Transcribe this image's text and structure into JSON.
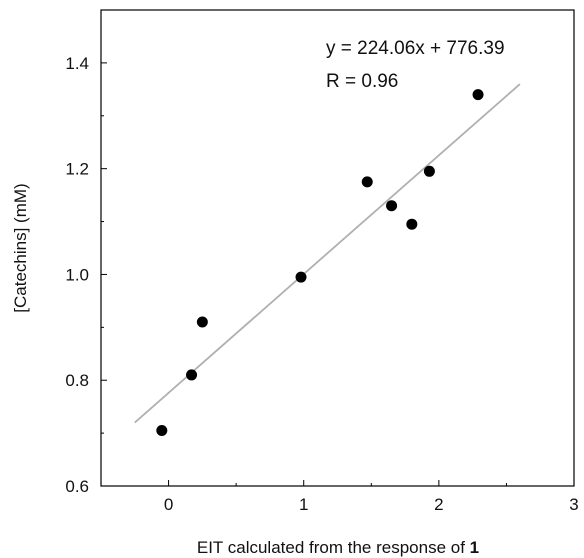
{
  "chart_data": {
    "type": "scatter",
    "title": "",
    "xlabel": "EIT calculated from the response of ",
    "xlabel_bold": "1",
    "ylabel": "[Catechins] (mM)",
    "xlim": [
      -0.5,
      3
    ],
    "ylim": [
      0.6,
      1.5
    ],
    "xticks": [
      0,
      1,
      2,
      3
    ],
    "yticks": [
      0.6,
      0.8,
      1.0,
      1.2,
      1.4
    ],
    "ytick_labels": [
      "0.6",
      "0.8",
      "1.0",
      "1.2",
      "1.4"
    ],
    "xminor_step": 0.5,
    "yminor_step": 0.1,
    "grid": false,
    "series": [
      {
        "x": [
          -0.05,
          0.17,
          0.25,
          0.98,
          1.47,
          1.65,
          1.8,
          1.93,
          2.29
        ],
        "y": [
          0.705,
          0.81,
          0.91,
          0.995,
          1.175,
          1.13,
          1.095,
          1.195,
          1.34
        ],
        "color": "#000000"
      }
    ],
    "fit_line": {
      "x": [
        -0.25,
        2.6
      ],
      "y": [
        0.72,
        1.36
      ],
      "color": "#b0b0b0"
    },
    "annotations": [
      "y = 224.06x + 776.39",
      "R = 0.96"
    ]
  }
}
